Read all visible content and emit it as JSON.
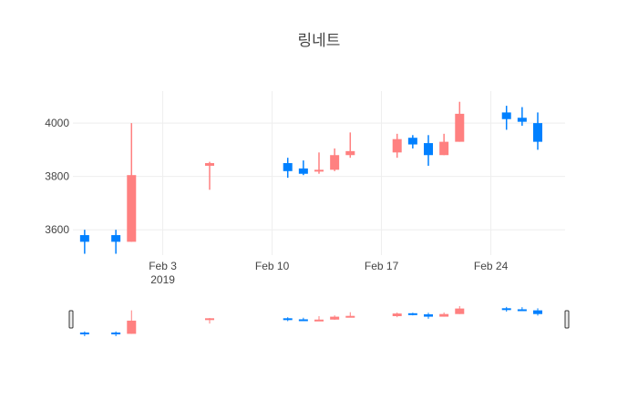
{
  "chart_data": {
    "type": "candlestick",
    "title": "링네트",
    "xlabel": "",
    "ylabel": "",
    "x_range": [
      "2019-01-29",
      "2019-02-28"
    ],
    "ylim": [
      3505,
      4120
    ],
    "y_ticks": [
      3600,
      3800,
      4000
    ],
    "x_ticks": [
      {
        "date": "2019-02-03",
        "label": "Feb 3",
        "sublabel": "2019"
      },
      {
        "date": "2019-02-10",
        "label": "Feb 10",
        "sublabel": ""
      },
      {
        "date": "2019-02-17",
        "label": "Feb 17",
        "sublabel": ""
      },
      {
        "date": "2019-02-24",
        "label": "Feb 24",
        "sublabel": ""
      }
    ],
    "grid": true,
    "rangeslider": true,
    "increasing_color": "#ff8080",
    "decreasing_color": "#0080ff",
    "candles": [
      {
        "date": "2019-01-29",
        "open": 3580,
        "high": 3600,
        "low": 3510,
        "close": 3555
      },
      {
        "date": "2019-01-31",
        "open": 3580,
        "high": 3600,
        "low": 3510,
        "close": 3555
      },
      {
        "date": "2019-02-01",
        "open": 3555,
        "high": 4000,
        "low": 3555,
        "close": 3805
      },
      {
        "date": "2019-02-06",
        "open": 3840,
        "high": 3855,
        "low": 3750,
        "close": 3850
      },
      {
        "date": "2019-02-11",
        "open": 3850,
        "high": 3870,
        "low": 3795,
        "close": 3820
      },
      {
        "date": "2019-02-12",
        "open": 3830,
        "high": 3860,
        "low": 3805,
        "close": 3810
      },
      {
        "date": "2019-02-13",
        "open": 3820,
        "high": 3890,
        "low": 3810,
        "close": 3825
      },
      {
        "date": "2019-02-14",
        "open": 3825,
        "high": 3905,
        "low": 3820,
        "close": 3880
      },
      {
        "date": "2019-02-15",
        "open": 3880,
        "high": 3965,
        "low": 3870,
        "close": 3895
      },
      {
        "date": "2019-02-18",
        "open": 3890,
        "high": 3960,
        "low": 3870,
        "close": 3940
      },
      {
        "date": "2019-02-19",
        "open": 3945,
        "high": 3955,
        "low": 3905,
        "close": 3920
      },
      {
        "date": "2019-02-20",
        "open": 3925,
        "high": 3955,
        "low": 3840,
        "close": 3880
      },
      {
        "date": "2019-02-21",
        "open": 3880,
        "high": 3960,
        "low": 3880,
        "close": 3930
      },
      {
        "date": "2019-02-22",
        "open": 3930,
        "high": 4080,
        "low": 3930,
        "close": 4035
      },
      {
        "date": "2019-02-25",
        "open": 4040,
        "high": 4065,
        "low": 3975,
        "close": 4015
      },
      {
        "date": "2019-02-26",
        "open": 4020,
        "high": 4060,
        "low": 3990,
        "close": 4005
      },
      {
        "date": "2019-02-27",
        "open": 4000,
        "high": 4040,
        "low": 3900,
        "close": 3930
      }
    ]
  }
}
